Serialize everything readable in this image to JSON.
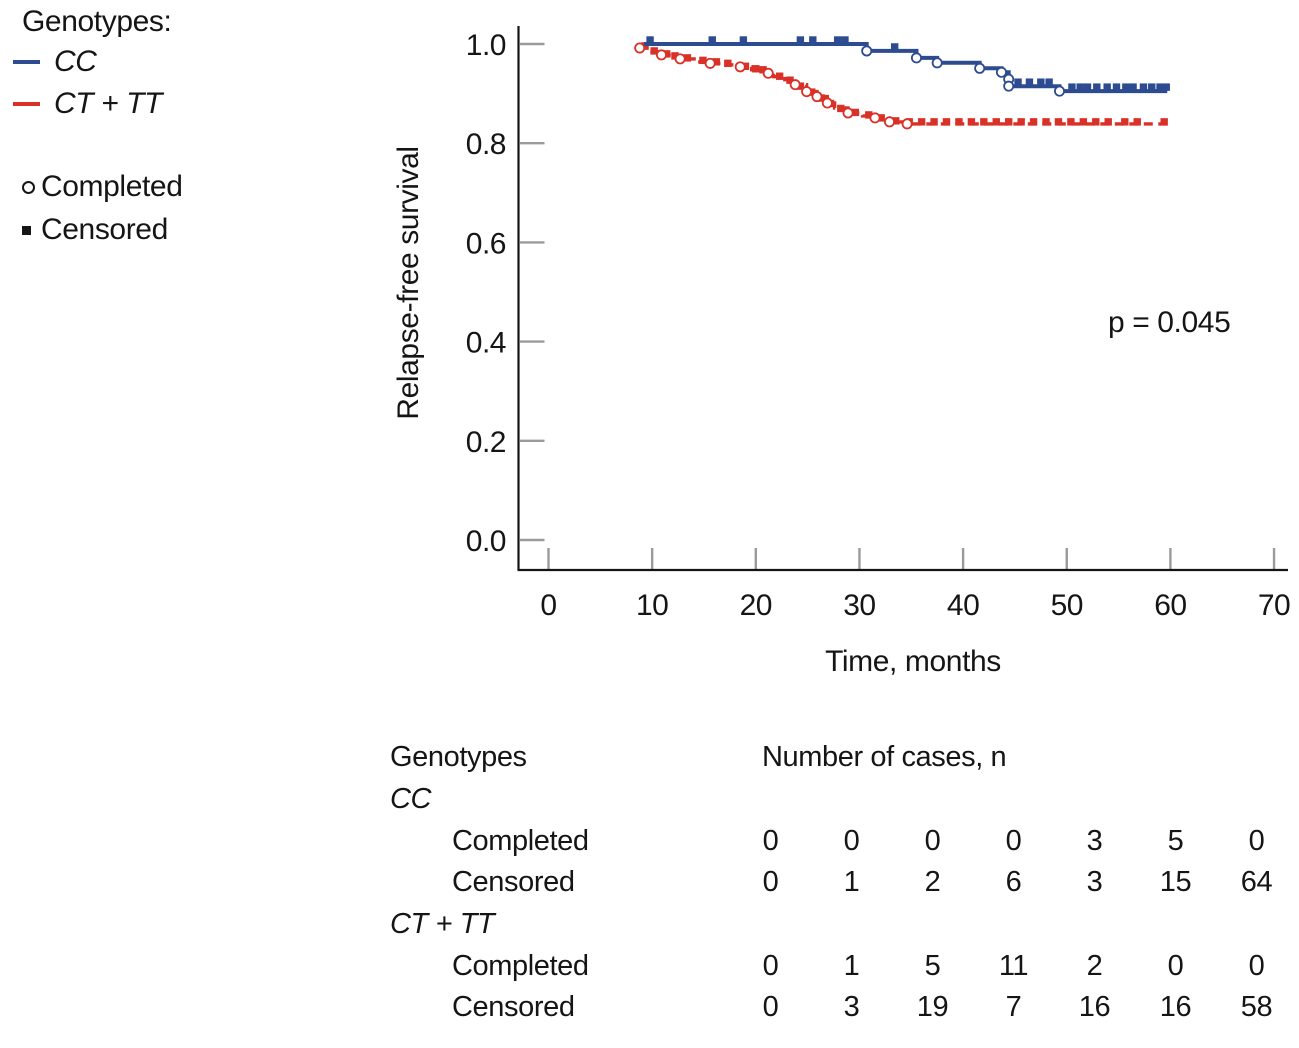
{
  "page": {
    "background": "#ffffff"
  },
  "legend": {
    "title": "Genotypes:",
    "series": [
      {
        "label": "CC",
        "color": "#2d4b90"
      },
      {
        "label": "CT + TT",
        "color": "#d93128"
      }
    ],
    "event_markers": [
      {
        "label": "Completed",
        "type": "open-circle"
      },
      {
        "label": "Censored",
        "type": "filled-square"
      }
    ]
  },
  "chart_data": {
    "type": "line",
    "subtype": "kaplan-meier-step",
    "title": "",
    "xlabel": "Time, months",
    "ylabel": "Relapse-free survival",
    "annotation": "p = 0.045",
    "xlim": [
      0,
      70
    ],
    "ylim": [
      0.0,
      1.0
    ],
    "xticks": [
      "0",
      "10",
      "20",
      "30",
      "40",
      "50",
      "60",
      "70"
    ],
    "yticks": [
      "0.0",
      "0.2",
      "0.4",
      "0.6",
      "0.8",
      "1.0"
    ],
    "grid": false,
    "legend_position": "outside-top-left",
    "axis_color": "#151515",
    "tick_color": "#9b9b9b",
    "series": [
      {
        "name": "CT + TT",
        "color": "#d93128",
        "line_style": "dashed",
        "steps": [
          [
            8.8,
            0.992
          ],
          [
            9.8,
            0.984
          ],
          [
            10.9,
            0.978
          ],
          [
            11.9,
            0.974
          ],
          [
            12.7,
            0.97
          ],
          [
            14.6,
            0.964
          ],
          [
            15.6,
            0.961
          ],
          [
            16.8,
            0.958
          ],
          [
            18.5,
            0.954
          ],
          [
            19.6,
            0.948
          ],
          [
            21.2,
            0.941
          ],
          [
            21.7,
            0.934
          ],
          [
            22.8,
            0.928
          ],
          [
            23.8,
            0.918
          ],
          [
            24.9,
            0.904
          ],
          [
            25.9,
            0.894
          ],
          [
            26.9,
            0.881
          ],
          [
            27.6,
            0.871
          ],
          [
            28.9,
            0.861
          ],
          [
            30.3,
            0.855
          ],
          [
            31.5,
            0.851
          ],
          [
            32.9,
            0.843
          ],
          [
            34.6,
            0.839
          ],
          [
            59.7,
            0.839
          ]
        ],
        "completed_markers": [
          [
            8.8,
            0.992
          ],
          [
            10.9,
            0.978
          ],
          [
            12.7,
            0.97
          ],
          [
            15.6,
            0.961
          ],
          [
            18.5,
            0.954
          ],
          [
            21.2,
            0.941
          ],
          [
            23.8,
            0.918
          ],
          [
            24.9,
            0.904
          ],
          [
            25.9,
            0.894
          ],
          [
            26.9,
            0.881
          ],
          [
            28.9,
            0.861
          ],
          [
            31.5,
            0.851
          ],
          [
            32.9,
            0.843
          ],
          [
            34.6,
            0.839
          ]
        ],
        "censored_markers": [
          [
            9.3,
            0.992
          ],
          [
            10.2,
            0.982
          ],
          [
            11.4,
            0.976
          ],
          [
            12.2,
            0.972
          ],
          [
            13.4,
            0.968
          ],
          [
            14.9,
            0.963
          ],
          [
            16.2,
            0.96
          ],
          [
            17.3,
            0.957
          ],
          [
            19.0,
            0.951
          ],
          [
            20.0,
            0.946
          ],
          [
            20.7,
            0.944
          ],
          [
            22.3,
            0.931
          ],
          [
            23.3,
            0.923
          ],
          [
            24.3,
            0.911
          ],
          [
            25.4,
            0.899
          ],
          [
            26.3,
            0.887
          ],
          [
            27.2,
            0.876
          ],
          [
            28.2,
            0.866
          ],
          [
            29.6,
            0.858
          ],
          [
            30.9,
            0.853
          ],
          [
            32.1,
            0.847
          ],
          [
            33.5,
            0.841
          ],
          [
            34.8,
            0.839
          ],
          [
            36.0,
            0.839
          ],
          [
            37.2,
            0.839
          ],
          [
            38.4,
            0.839
          ],
          [
            39.6,
            0.839
          ],
          [
            40.8,
            0.839
          ],
          [
            42.0,
            0.839
          ],
          [
            43.2,
            0.839
          ],
          [
            44.4,
            0.839
          ],
          [
            45.6,
            0.839
          ],
          [
            46.8,
            0.839
          ],
          [
            48.0,
            0.839
          ],
          [
            49.2,
            0.839
          ],
          [
            50.4,
            0.839
          ],
          [
            51.6,
            0.839
          ],
          [
            52.8,
            0.839
          ],
          [
            54.0,
            0.839
          ],
          [
            55.6,
            0.839
          ],
          [
            56.8,
            0.839
          ],
          [
            59.4,
            0.839
          ]
        ],
        "censored_marker_dy": -2
      },
      {
        "name": "CC",
        "color": "#2d4b90",
        "line_style": "solid",
        "steps": [
          [
            9.2,
            1.0
          ],
          [
            30.7,
            0.986
          ],
          [
            35.5,
            0.972
          ],
          [
            37.5,
            0.962
          ],
          [
            41.6,
            0.951
          ],
          [
            43.7,
            0.943
          ],
          [
            44.4,
            0.915
          ],
          [
            49.3,
            0.905
          ],
          [
            59.7,
            0.905
          ]
        ],
        "completed_markers": [
          [
            30.7,
            0.986
          ],
          [
            35.5,
            0.972
          ],
          [
            37.5,
            0.962
          ],
          [
            41.6,
            0.951
          ],
          [
            43.7,
            0.943
          ],
          [
            44.4,
            0.929
          ],
          [
            44.4,
            0.915
          ],
          [
            49.3,
            0.905
          ]
        ],
        "censored_markers": [
          [
            9.8,
            1.0
          ],
          [
            15.8,
            1.0
          ],
          [
            18.8,
            1.0
          ],
          [
            24.3,
            1.0
          ],
          [
            25.5,
            1.0
          ],
          [
            27.9,
            1.0
          ],
          [
            28.6,
            1.0
          ],
          [
            33.4,
            0.986
          ],
          [
            45.3,
            0.915
          ],
          [
            46.4,
            0.915
          ],
          [
            47.5,
            0.915
          ],
          [
            48.3,
            0.915
          ],
          [
            50.5,
            0.905
          ],
          [
            51.3,
            0.905
          ],
          [
            52.0,
            0.905
          ],
          [
            52.9,
            0.905
          ],
          [
            53.9,
            0.905
          ],
          [
            54.8,
            0.905
          ],
          [
            55.7,
            0.905
          ],
          [
            56.4,
            0.905
          ],
          [
            57.4,
            0.905
          ],
          [
            58.2,
            0.905
          ],
          [
            59.0,
            0.905
          ],
          [
            59.6,
            0.905
          ]
        ],
        "censored_marker_dy": -4
      }
    ]
  },
  "table": {
    "header_left": "Genotypes",
    "header_right": "Number of cases, n",
    "groups": [
      {
        "name": "CC",
        "rows": [
          {
            "label": "Completed",
            "values": [
              "0",
              "0",
              "0",
              "0",
              "3",
              "5",
              "0"
            ]
          },
          {
            "label": "Censored",
            "values": [
              "0",
              "1",
              "2",
              "6",
              "3",
              "15",
              "64"
            ]
          }
        ]
      },
      {
        "name": "CT + TT",
        "rows": [
          {
            "label": "Completed",
            "values": [
              "0",
              "1",
              "5",
              "11",
              "2",
              "0",
              "0"
            ]
          },
          {
            "label": "Censored",
            "values": [
              "0",
              "3",
              "19",
              "7",
              "16",
              "16",
              "58"
            ]
          }
        ]
      }
    ]
  }
}
